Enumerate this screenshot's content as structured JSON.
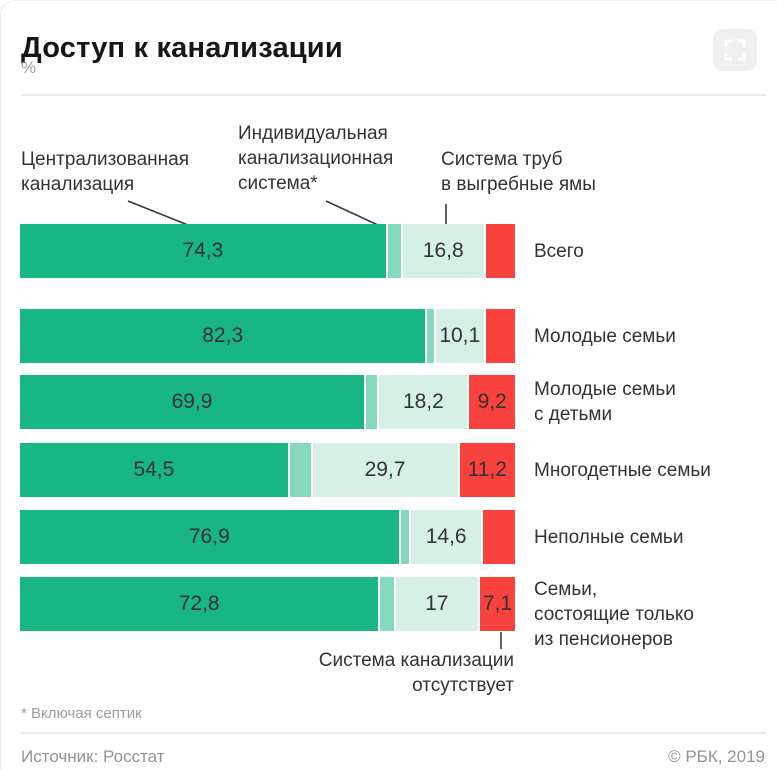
{
  "header": {
    "title": "Доступ к канализации",
    "unit": "%"
  },
  "annotations": {
    "centralized": "Централизованная\nканализация",
    "individual": "Индивидуальная\nканализационная\nсистема*",
    "pipes": "Система труб\nв выгребные ямы",
    "absent": "Система канализации\nотсутствует"
  },
  "footer": {
    "footnote": "* Включая септик",
    "source": "Источник: Росстат",
    "copyright": "© РБК, 2019"
  },
  "colors": {
    "centralized": "#18B685",
    "individual": "#86D9BD",
    "pipes": "#D7F0E5",
    "absent": "#F9423E",
    "text_dark": "#333333",
    "text_gray": "#9E9E9E",
    "divider": "#EAEAEA"
  },
  "chart_data": {
    "type": "bar",
    "orientation": "horizontal",
    "stacked": true,
    "unit": "%",
    "title": "Доступ к канализации",
    "xlim": [
      0,
      100
    ],
    "grid": false,
    "legend_position": "annotations-with-leader-lines",
    "segments": [
      {
        "name": "Централизованная канализация",
        "color": "#18B685"
      },
      {
        "name": "Индивидуальная канализационная система*",
        "color": "#86D9BD"
      },
      {
        "name": "Система труб в выгребные ямы",
        "color": "#D7F0E5"
      },
      {
        "name": "Система канализации отсутствует",
        "color": "#F9423E"
      }
    ],
    "categories": [
      "Всего",
      "Молодые семьи",
      "Молодые семьи с детьми",
      "Многодетные семьи",
      "Неполные семьи",
      "Семьи, состоящие только из пенсионеров"
    ],
    "rows": [
      {
        "category": "Всего",
        "values": [
          74.3,
          3.0,
          16.8,
          5.9
        ],
        "labels": [
          "74,3",
          "",
          "16,8",
          ""
        ]
      },
      {
        "category": "Молодые семьи",
        "values": [
          82.3,
          1.7,
          10.1,
          5.9
        ],
        "labels": [
          "82,3",
          "",
          "10,1",
          ""
        ]
      },
      {
        "category": "Молодые семьи\nс детьми",
        "values": [
          69.9,
          2.7,
          18.2,
          9.2
        ],
        "labels": [
          "69,9",
          "",
          "18,2",
          "9,2"
        ]
      },
      {
        "category": "Многодетные семьи",
        "values": [
          54.5,
          4.6,
          29.7,
          11.2
        ],
        "labels": [
          "54,5",
          "",
          "29,7",
          "11,2"
        ]
      },
      {
        "category": "Неполные семьи",
        "values": [
          76.9,
          2.1,
          14.6,
          6.4
        ],
        "labels": [
          "76,9",
          "",
          "14,6",
          ""
        ]
      },
      {
        "category": "Семьи,\nсостоящие только\nиз пенсионеров",
        "values": [
          72.8,
          3.1,
          17.0,
          7.1
        ],
        "labels": [
          "72,8",
          "",
          "17",
          "7,1"
        ]
      }
    ]
  }
}
